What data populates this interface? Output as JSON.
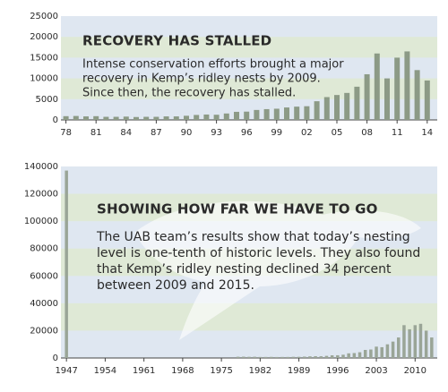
{
  "chart_data": [
    {
      "type": "bar",
      "title": "RECOVERY HAS STALLED",
      "annotation": [
        "Intense conservation efforts brought a major",
        "recovery in Kemp’s ridley nests by 2009.",
        "Since then, the recovery has stalled."
      ],
      "x": [
        1978,
        1979,
        1980,
        1981,
        1982,
        1983,
        1984,
        1985,
        1986,
        1987,
        1988,
        1989,
        1990,
        1991,
        1992,
        1993,
        1994,
        1995,
        1996,
        1997,
        1998,
        1999,
        2000,
        2001,
        2002,
        2003,
        2004,
        2005,
        2006,
        2007,
        2008,
        2009,
        2010,
        2011,
        2012,
        2013,
        2014
      ],
      "values": [
        900,
        950,
        850,
        900,
        750,
        750,
        800,
        700,
        750,
        750,
        850,
        850,
        1000,
        1200,
        1300,
        1250,
        1550,
        1950,
        2000,
        2400,
        2600,
        2700,
        3000,
        3200,
        3300,
        4500,
        5500,
        6000,
        6500,
        8000,
        11000,
        16000,
        10000,
        15000,
        16500,
        12000,
        9500
      ],
      "color": "#8c9a86",
      "xlim": [
        1977.5,
        2015
      ],
      "xticks": [
        {
          "value": 1978,
          "label": "78"
        },
        {
          "value": 1981,
          "label": "81"
        },
        {
          "value": 1984,
          "label": "84"
        },
        {
          "value": 1987,
          "label": "87"
        },
        {
          "value": 1990,
          "label": "90"
        },
        {
          "value": 1993,
          "label": "93"
        },
        {
          "value": 1996,
          "label": "96"
        },
        {
          "value": 1999,
          "label": "99"
        },
        {
          "value": 2002,
          "label": "02"
        },
        {
          "value": 2005,
          "label": "05"
        },
        {
          "value": 2008,
          "label": "08"
        },
        {
          "value": 2011,
          "label": "11"
        },
        {
          "value": 2014,
          "label": "14"
        }
      ],
      "ylim": [
        0,
        25000
      ],
      "yticks": [
        0,
        5000,
        10000,
        15000,
        20000,
        25000
      ],
      "grid": "bands"
    },
    {
      "type": "bar",
      "title": "SHOWING HOW FAR WE HAVE TO GO",
      "annotation": [
        "The UAB team’s results show that today’s nesting",
        "level is one-tenth of historic levels. They also found",
        "that Kemp’s ridley nesting declined 34 percent",
        "between 2009 and 2015."
      ],
      "x": [
        1947,
        1978,
        1979,
        1980,
        1981,
        1982,
        1983,
        1984,
        1985,
        1986,
        1987,
        1988,
        1989,
        1990,
        1991,
        1992,
        1993,
        1994,
        1995,
        1996,
        1997,
        1998,
        1999,
        2000,
        2001,
        2002,
        2003,
        2004,
        2005,
        2006,
        2007,
        2008,
        2009,
        2010,
        2011,
        2012,
        2013
      ],
      "values": [
        137000,
        900,
        950,
        850,
        900,
        750,
        750,
        800,
        700,
        750,
        750,
        850,
        850,
        1000,
        1200,
        1300,
        1250,
        1550,
        1950,
        2000,
        2400,
        3400,
        3600,
        4200,
        5900,
        6200,
        8300,
        7900,
        10000,
        12000,
        15000,
        24000,
        21000,
        24000,
        25000,
        20000,
        15000
      ],
      "color": "#9aa597",
      "xlim": [
        1946,
        2014
      ],
      "xticks": [
        1947,
        1954,
        1961,
        1968,
        1975,
        1982,
        1989,
        1996,
        2003,
        2010
      ],
      "ylim": [
        0,
        140000
      ],
      "yticks": [
        0,
        20000,
        40000,
        60000,
        80000,
        100000,
        120000,
        140000
      ],
      "grid": "bands"
    }
  ]
}
